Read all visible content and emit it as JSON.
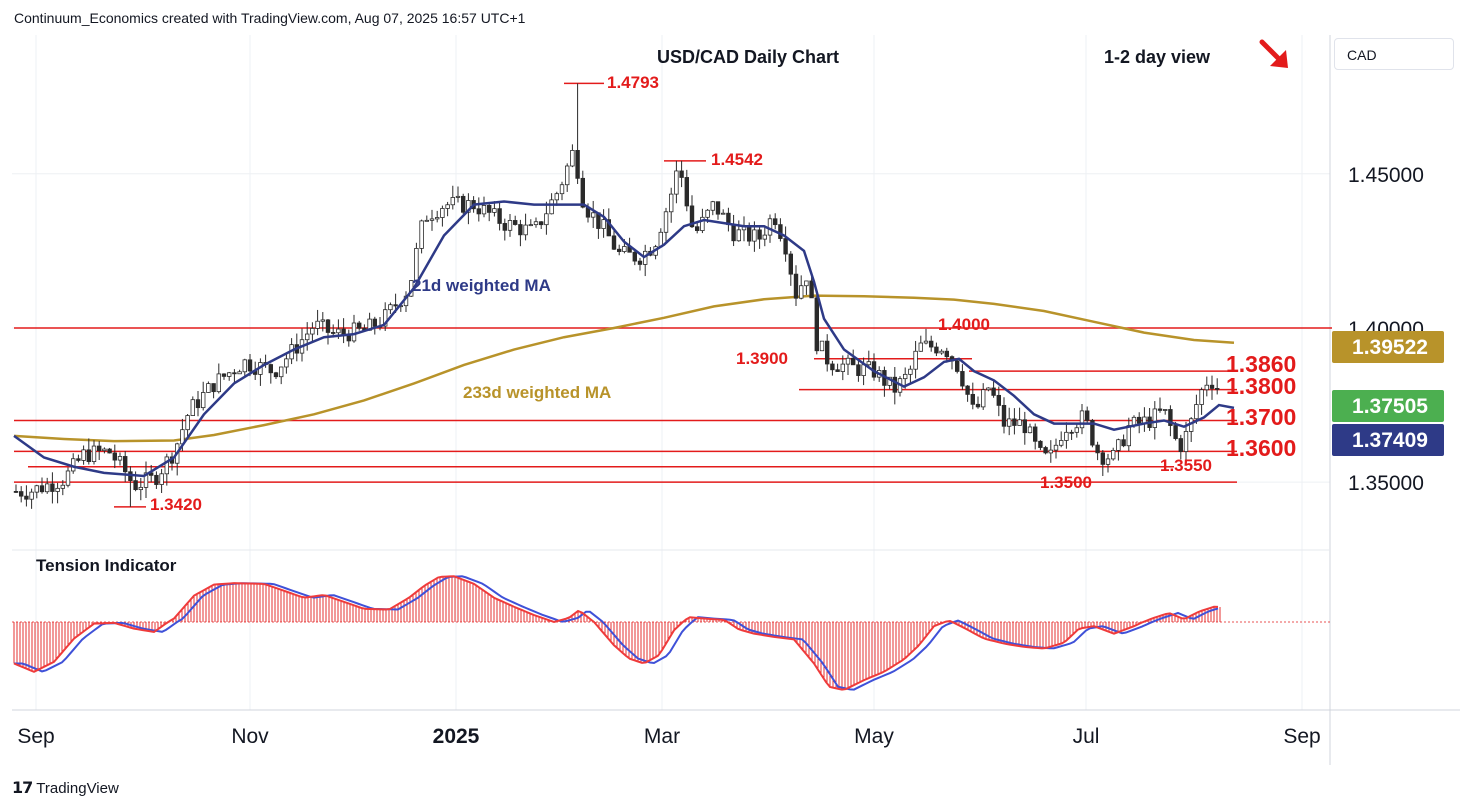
{
  "attribution": "Continuum_Economics created with TradingView.com, Aug 07, 2025 16:57 UTC+1",
  "footer_brand": "TradingView",
  "currency_label": "CAD",
  "chart_data": {
    "type": "candlestick",
    "title": "USD/CAD Daily Chart",
    "view_label": "1-2 day view",
    "view_arrow": "down-right",
    "x_ticks": [
      "Sep",
      "Nov",
      "2025",
      "Mar",
      "May",
      "Jul",
      "Sep"
    ],
    "y_ticks": [
      "1.45000",
      "1.40000",
      "1.35000"
    ],
    "ylim": [
      1.328,
      1.495
    ],
    "price_badges": [
      {
        "label": "1.39522",
        "value": 1.39522,
        "color": "#b8932a"
      },
      {
        "label": "1.37505",
        "value": 1.37505,
        "color": "#4caf50"
      },
      {
        "label": "1.37409",
        "value": 1.37409,
        "color": "#2e3a87"
      }
    ],
    "levels": [
      {
        "label": "1.4793",
        "value": 1.4793,
        "style": "peak"
      },
      {
        "label": "1.4542",
        "value": 1.4542,
        "style": "peak"
      },
      {
        "label": "1.4000",
        "value": 1.4,
        "style": "line"
      },
      {
        "label": "1.3900",
        "value": 1.39,
        "style": "line"
      },
      {
        "label": "1.3860",
        "value": 1.386,
        "style": "line"
      },
      {
        "label": "1.3800",
        "value": 1.38,
        "style": "line"
      },
      {
        "label": "1.3700",
        "value": 1.37,
        "style": "line"
      },
      {
        "label": "1.3600",
        "value": 1.36,
        "style": "line"
      },
      {
        "label": "1.3550",
        "value": 1.355,
        "style": "line"
      },
      {
        "label": "1.3500",
        "value": 1.35,
        "style": "line"
      },
      {
        "label": "1.3420",
        "value": 1.342,
        "style": "trough"
      }
    ],
    "ma_labels": {
      "ma21": "21d weighted MA",
      "ma233": "233d weighted MA"
    },
    "ma21": [
      [
        0,
        1.365
      ],
      [
        30,
        1.358
      ],
      [
        60,
        1.355
      ],
      [
        90,
        1.353
      ],
      [
        130,
        1.352
      ],
      [
        160,
        1.358
      ],
      [
        190,
        1.372
      ],
      [
        220,
        1.382
      ],
      [
        250,
        1.388
      ],
      [
        280,
        1.393
      ],
      [
        310,
        1.397
      ],
      [
        340,
        1.398
      ],
      [
        370,
        1.401
      ],
      [
        400,
        1.413
      ],
      [
        430,
        1.43
      ],
      [
        460,
        1.44
      ],
      [
        490,
        1.441
      ],
      [
        520,
        1.44
      ],
      [
        550,
        1.44
      ],
      [
        570,
        1.44
      ],
      [
        590,
        1.436
      ],
      [
        610,
        1.428
      ],
      [
        630,
        1.423
      ],
      [
        650,
        1.427
      ],
      [
        670,
        1.433
      ],
      [
        690,
        1.435
      ],
      [
        710,
        1.434
      ],
      [
        730,
        1.433
      ],
      [
        750,
        1.433
      ],
      [
        770,
        1.43
      ],
      [
        790,
        1.425
      ],
      [
        800,
        1.415
      ],
      [
        810,
        1.403
      ],
      [
        830,
        1.393
      ],
      [
        860,
        1.386
      ],
      [
        890,
        1.381
      ],
      [
        910,
        1.384
      ],
      [
        930,
        1.389
      ],
      [
        945,
        1.39
      ],
      [
        960,
        1.386
      ],
      [
        980,
        1.383
      ],
      [
        1000,
        1.378
      ],
      [
        1020,
        1.372
      ],
      [
        1040,
        1.369
      ],
      [
        1060,
        1.369
      ],
      [
        1080,
        1.369
      ],
      [
        1100,
        1.367
      ],
      [
        1130,
        1.369
      ],
      [
        1150,
        1.37
      ],
      [
        1170,
        1.368
      ],
      [
        1190,
        1.371
      ],
      [
        1205,
        1.375
      ],
      [
        1220,
        1.3741
      ]
    ],
    "ma233": [
      [
        0,
        1.365
      ],
      [
        50,
        1.364
      ],
      [
        100,
        1.3633
      ],
      [
        160,
        1.3635
      ],
      [
        200,
        1.3653
      ],
      [
        250,
        1.3685
      ],
      [
        300,
        1.372
      ],
      [
        350,
        1.3765
      ],
      [
        400,
        1.382
      ],
      [
        450,
        1.388
      ],
      [
        500,
        1.393
      ],
      [
        550,
        1.397
      ],
      [
        600,
        1.4
      ],
      [
        650,
        1.4033
      ],
      [
        700,
        1.407
      ],
      [
        750,
        1.4093
      ],
      [
        800,
        1.4105
      ],
      [
        850,
        1.4103
      ],
      [
        900,
        1.4098
      ],
      [
        940,
        1.4092
      ],
      [
        980,
        1.4078
      ],
      [
        1030,
        1.4055
      ],
      [
        1080,
        1.402
      ],
      [
        1130,
        1.3985
      ],
      [
        1180,
        1.3961
      ],
      [
        1220,
        1.3952
      ]
    ],
    "price_anchors": [
      [
        15,
        1.347
      ],
      [
        50,
        1.351
      ],
      [
        70,
        1.359
      ],
      [
        95,
        1.36
      ],
      [
        110,
        1.354
      ],
      [
        120,
        1.349
      ],
      [
        140,
        1.351
      ],
      [
        160,
        1.36
      ],
      [
        175,
        1.373
      ],
      [
        200,
        1.382
      ],
      [
        230,
        1.389
      ],
      [
        260,
        1.386
      ],
      [
        280,
        1.393
      ],
      [
        300,
        1.401
      ],
      [
        320,
        1.398
      ],
      [
        350,
        1.399
      ],
      [
        370,
        1.403
      ],
      [
        395,
        1.413
      ],
      [
        410,
        1.436
      ],
      [
        430,
        1.44
      ],
      [
        460,
        1.44
      ],
      [
        490,
        1.434
      ],
      [
        520,
        1.431
      ],
      [
        545,
        1.445
      ],
      [
        560,
        1.458
      ],
      [
        570,
        1.44
      ],
      [
        590,
        1.432
      ],
      [
        605,
        1.424
      ],
      [
        625,
        1.423
      ],
      [
        640,
        1.427
      ],
      [
        655,
        1.441
      ],
      [
        665,
        1.453
      ],
      [
        680,
        1.43
      ],
      [
        700,
        1.44
      ],
      [
        720,
        1.431
      ],
      [
        745,
        1.429
      ],
      [
        760,
        1.437
      ],
      [
        775,
        1.424
      ],
      [
        780,
        1.41
      ],
      [
        795,
        1.419
      ],
      [
        800,
        1.397
      ],
      [
        815,
        1.389
      ],
      [
        840,
        1.387
      ],
      [
        860,
        1.386
      ],
      [
        880,
        1.38
      ],
      [
        895,
        1.385
      ],
      [
        905,
        1.394
      ],
      [
        930,
        1.394
      ],
      [
        945,
        1.387
      ],
      [
        960,
        1.372
      ],
      [
        975,
        1.381
      ],
      [
        990,
        1.369
      ],
      [
        1010,
        1.369
      ],
      [
        1025,
        1.359
      ],
      [
        1035,
        1.357
      ],
      [
        1050,
        1.368
      ],
      [
        1070,
        1.371
      ],
      [
        1085,
        1.359
      ],
      [
        1100,
        1.358
      ],
      [
        1115,
        1.368
      ],
      [
        1135,
        1.37
      ],
      [
        1150,
        1.373
      ],
      [
        1165,
        1.361
      ],
      [
        1175,
        1.367
      ],
      [
        1185,
        1.378
      ],
      [
        1195,
        1.384
      ],
      [
        1205,
        1.38
      ],
      [
        1220,
        1.375
      ]
    ],
    "candle_spikes": [
      {
        "x": 565,
        "value": 1.4793
      },
      {
        "x": 665,
        "value": 1.4542
      },
      {
        "x": 115,
        "value": 1.342
      }
    ],
    "tension_indicator": {
      "title": "Tension Indicator",
      "ylim": [
        -1.0,
        0.75
      ],
      "fast": [
        [
          0,
          -0.5
        ],
        [
          20,
          -0.6
        ],
        [
          40,
          -0.48
        ],
        [
          60,
          -0.2
        ],
        [
          80,
          -0.02
        ],
        [
          100,
          -0.01
        ],
        [
          120,
          -0.08
        ],
        [
          140,
          -0.12
        ],
        [
          160,
          0.05
        ],
        [
          180,
          0.38
        ],
        [
          200,
          0.54
        ],
        [
          220,
          0.56
        ],
        [
          250,
          0.55
        ],
        [
          270,
          0.45
        ],
        [
          290,
          0.35
        ],
        [
          310,
          0.39
        ],
        [
          330,
          0.29
        ],
        [
          350,
          0.19
        ],
        [
          375,
          0.18
        ],
        [
          395,
          0.35
        ],
        [
          410,
          0.52
        ],
        [
          425,
          0.65
        ],
        [
          440,
          0.66
        ],
        [
          460,
          0.55
        ],
        [
          480,
          0.35
        ],
        [
          500,
          0.22
        ],
        [
          520,
          0.1
        ],
        [
          540,
          0.0
        ],
        [
          555,
          0.06
        ],
        [
          565,
          0.17
        ],
        [
          580,
          0.0
        ],
        [
          600,
          -0.28
        ],
        [
          615,
          -0.44
        ],
        [
          630,
          -0.5
        ],
        [
          645,
          -0.4
        ],
        [
          660,
          -0.1
        ],
        [
          675,
          0.07
        ],
        [
          690,
          0.05
        ],
        [
          710,
          0.03
        ],
        [
          725,
          -0.09
        ],
        [
          740,
          -0.14
        ],
        [
          760,
          -0.18
        ],
        [
          780,
          -0.21
        ],
        [
          800,
          -0.5
        ],
        [
          815,
          -0.78
        ],
        [
          830,
          -0.82
        ],
        [
          850,
          -0.7
        ],
        [
          870,
          -0.6
        ],
        [
          890,
          -0.45
        ],
        [
          905,
          -0.28
        ],
        [
          920,
          -0.05
        ],
        [
          935,
          0.02
        ],
        [
          950,
          -0.07
        ],
        [
          970,
          -0.2
        ],
        [
          990,
          -0.26
        ],
        [
          1010,
          -0.3
        ],
        [
          1030,
          -0.32
        ],
        [
          1050,
          -0.25
        ],
        [
          1065,
          -0.08
        ],
        [
          1080,
          -0.05
        ],
        [
          1100,
          -0.14
        ],
        [
          1120,
          -0.05
        ],
        [
          1140,
          0.06
        ],
        [
          1155,
          0.13
        ],
        [
          1170,
          0.04
        ],
        [
          1185,
          0.15
        ],
        [
          1200,
          0.22
        ],
        [
          1220,
          0.21
        ]
      ]
    }
  }
}
